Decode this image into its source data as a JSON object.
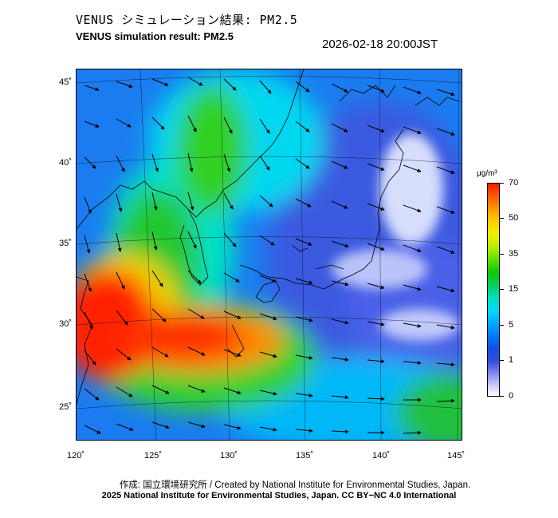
{
  "header": {
    "title_jp": "VENUS シミュレーション結果: PM2.5",
    "title_en": "VENUS simulation result: PM2.5",
    "timestamp": "2026-02-18 20:00JST"
  },
  "map": {
    "variable": "PM2.5",
    "lat_labels": [
      "45˚",
      "40˚",
      "35˚",
      "30˚",
      "25˚"
    ],
    "lon_labels": [
      "120˚",
      "125˚",
      "130˚",
      "135˚",
      "140˚",
      "145˚"
    ],
    "lat_range": [
      23,
      46
    ],
    "lon_range": [
      120,
      145
    ],
    "features": {
      "high_concentration_region": "East China / East China Sea",
      "low_concentration_region": "Japan / Pacific",
      "wind_vectors": "northwesterly"
    },
    "colors": {
      "very_high": "#ff1a00",
      "high": "#ffd000",
      "medium": "#10c800",
      "low": "#00d8ff",
      "very_low": "#1050e0",
      "minimal": "#ffffff"
    }
  },
  "colorbar": {
    "unit": "μg/m³",
    "ticks": [
      "70",
      "50",
      "35",
      "15",
      "5",
      "1",
      "0"
    ]
  },
  "footer": {
    "credit_line1": "作成: 国立環境研究所 / Created by National Institute for Environmental Studies, Japan.",
    "credit_line2": "2025 National Institute for Environmental Studies, Japan. CC BY−NC 4.0 International"
  }
}
